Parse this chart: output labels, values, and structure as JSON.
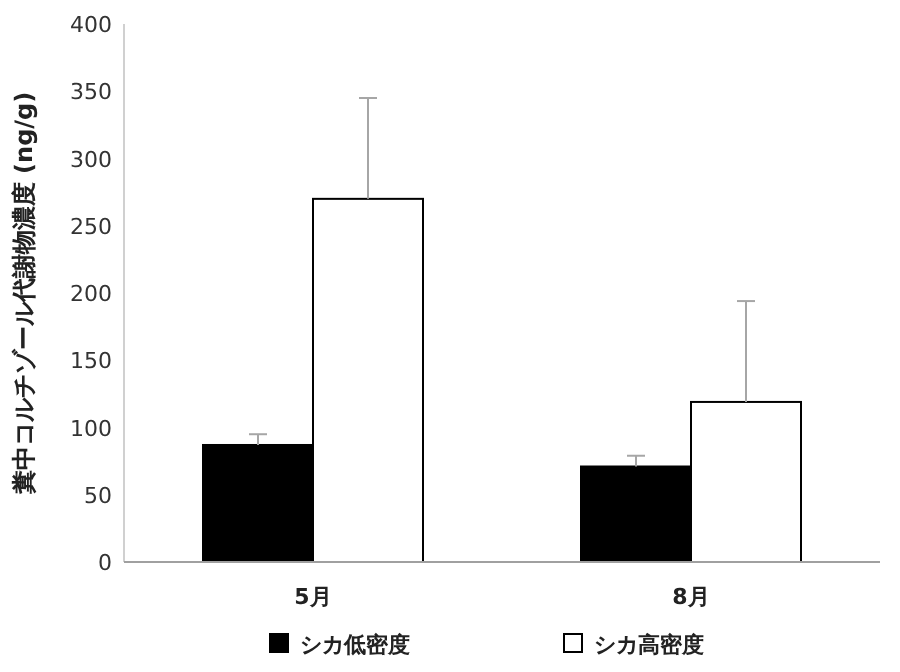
{
  "chart_data": {
    "type": "bar",
    "ylabel": "糞中コルチゾール代謝物濃度 (ng/g)",
    "categories": [
      "5月",
      "8月"
    ],
    "series": [
      {
        "name": "シカ低密度",
        "color": "#000000",
        "values": [
          87,
          71
        ],
        "errors": [
          [
            87,
            95
          ],
          [
            71,
            79
          ]
        ]
      },
      {
        "name": "シカ高密度",
        "color": "#ffffff",
        "values": [
          270,
          119
        ],
        "errors": [
          [
            270,
            345
          ],
          [
            119,
            194
          ]
        ]
      }
    ],
    "ylim": [
      0,
      400
    ],
    "yticks": [
      0,
      50,
      100,
      150,
      200,
      250,
      300,
      350,
      400
    ],
    "grid": false,
    "legend": "bottom"
  }
}
